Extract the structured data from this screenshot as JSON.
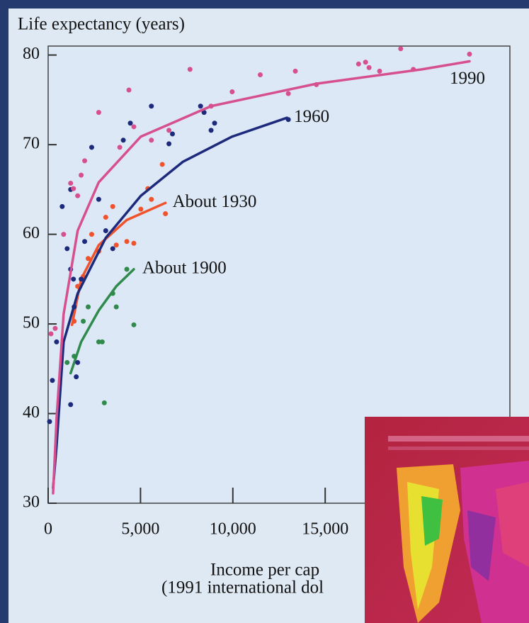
{
  "chart_data": {
    "type": "scatter",
    "title": "Life expectancy (years)",
    "x_label_lines": [
      "Income per cap",
      "(1991 international dol"
    ],
    "xlim": [
      0,
      25000
    ],
    "ylim": [
      30,
      81
    ],
    "xticks": [
      {
        "value": 0,
        "label": "0"
      },
      {
        "value": 5000,
        "label": "5,000"
      },
      {
        "value": 10000,
        "label": "10,000"
      },
      {
        "value": 15000,
        "label": "15,000"
      }
    ],
    "yticks": [
      30,
      40,
      50,
      60,
      70,
      80
    ],
    "grid": false,
    "series": [
      {
        "name": "About 1900",
        "color": "#2f8a4c",
        "x": [
          1027,
          1407,
          1901,
          2167,
          2738,
          2928,
          3042,
          3498,
          3688,
          4259,
          4639
        ],
        "values": [
          45.7,
          46.4,
          50.3,
          51.9,
          48.0,
          48.0,
          41.2,
          53.4,
          51.9,
          56.1,
          49.9
        ],
        "fit_x": [
          1217,
          1787,
          2738,
          3688,
          4639
        ],
        "fit_values": [
          44.5,
          48.0,
          51.5,
          54.2,
          56.1
        ]
      },
      {
        "name": "About 1930",
        "color": "#f0532c",
        "x": [
          1407,
          1597,
          1901,
          2167,
          2357,
          2738,
          3118,
          3498,
          3688,
          4259,
          4639,
          5019,
          5399,
          5589,
          6179,
          6350
        ],
        "values": [
          50.3,
          54.2,
          55.3,
          57.3,
          60.0,
          58.1,
          61.9,
          63.1,
          58.8,
          59.2,
          59.0,
          62.8,
          65.1,
          63.9,
          67.8,
          62.3
        ],
        "fit_x": [
          1293,
          1787,
          2738,
          4259,
          6350
        ],
        "fit_values": [
          49.9,
          55.0,
          58.8,
          61.6,
          63.5
        ]
      },
      {
        "name": "1960",
        "color": "#1d2a7c",
        "x": [
          76,
          228,
          456,
          760,
          1027,
          1217,
          1217,
          1369,
          1407,
          1521,
          1597,
          1787,
          1977,
          2357,
          2738,
          3118,
          3498,
          4068,
          4449,
          5589,
          6540,
          6730,
          8251,
          8441,
          8821,
          9011,
          13004,
          1217
        ],
        "values": [
          39.1,
          43.7,
          48.0,
          63.1,
          58.4,
          65.0,
          56.1,
          55.0,
          51.9,
          44.1,
          45.7,
          55.0,
          59.2,
          69.7,
          63.9,
          60.4,
          58.4,
          70.5,
          72.4,
          74.3,
          70.1,
          71.2,
          74.3,
          73.6,
          71.6,
          72.4,
          72.8,
          41.0
        ],
        "fit_x": [
          266,
          456,
          837,
          1597,
          3118,
          5019,
          7300,
          9962,
          12928
        ],
        "fit_values": [
          31.7,
          36.4,
          48.0,
          53.4,
          59.6,
          64.3,
          68.1,
          70.9,
          73.0
        ]
      },
      {
        "name": "1990",
        "color": "#d6508f",
        "x": [
          152,
          380,
          837,
          1217,
          1369,
          1597,
          1787,
          1977,
          2738,
          3878,
          4373,
          4639,
          5589,
          6540,
          7681,
          8821,
          9962,
          11483,
          13004,
          13384,
          14525,
          16806,
          17186,
          17376,
          17947,
          19087,
          19772,
          22814
        ],
        "values": [
          48.9,
          49.5,
          60.0,
          65.7,
          65.1,
          64.3,
          66.6,
          68.2,
          73.6,
          69.7,
          76.1,
          72.0,
          70.5,
          71.6,
          78.4,
          74.3,
          75.9,
          77.8,
          75.7,
          78.2,
          76.7,
          79.0,
          79.2,
          78.6,
          78.2,
          80.7,
          78.4,
          80.1
        ],
        "fit_x": [
          266,
          456,
          837,
          1597,
          2738,
          5019,
          8821,
          14525,
          20228,
          22814
        ],
        "fit_values": [
          31.1,
          39.5,
          51.1,
          60.4,
          65.8,
          70.9,
          74.3,
          76.8,
          78.4,
          79.3
        ]
      }
    ]
  }
}
